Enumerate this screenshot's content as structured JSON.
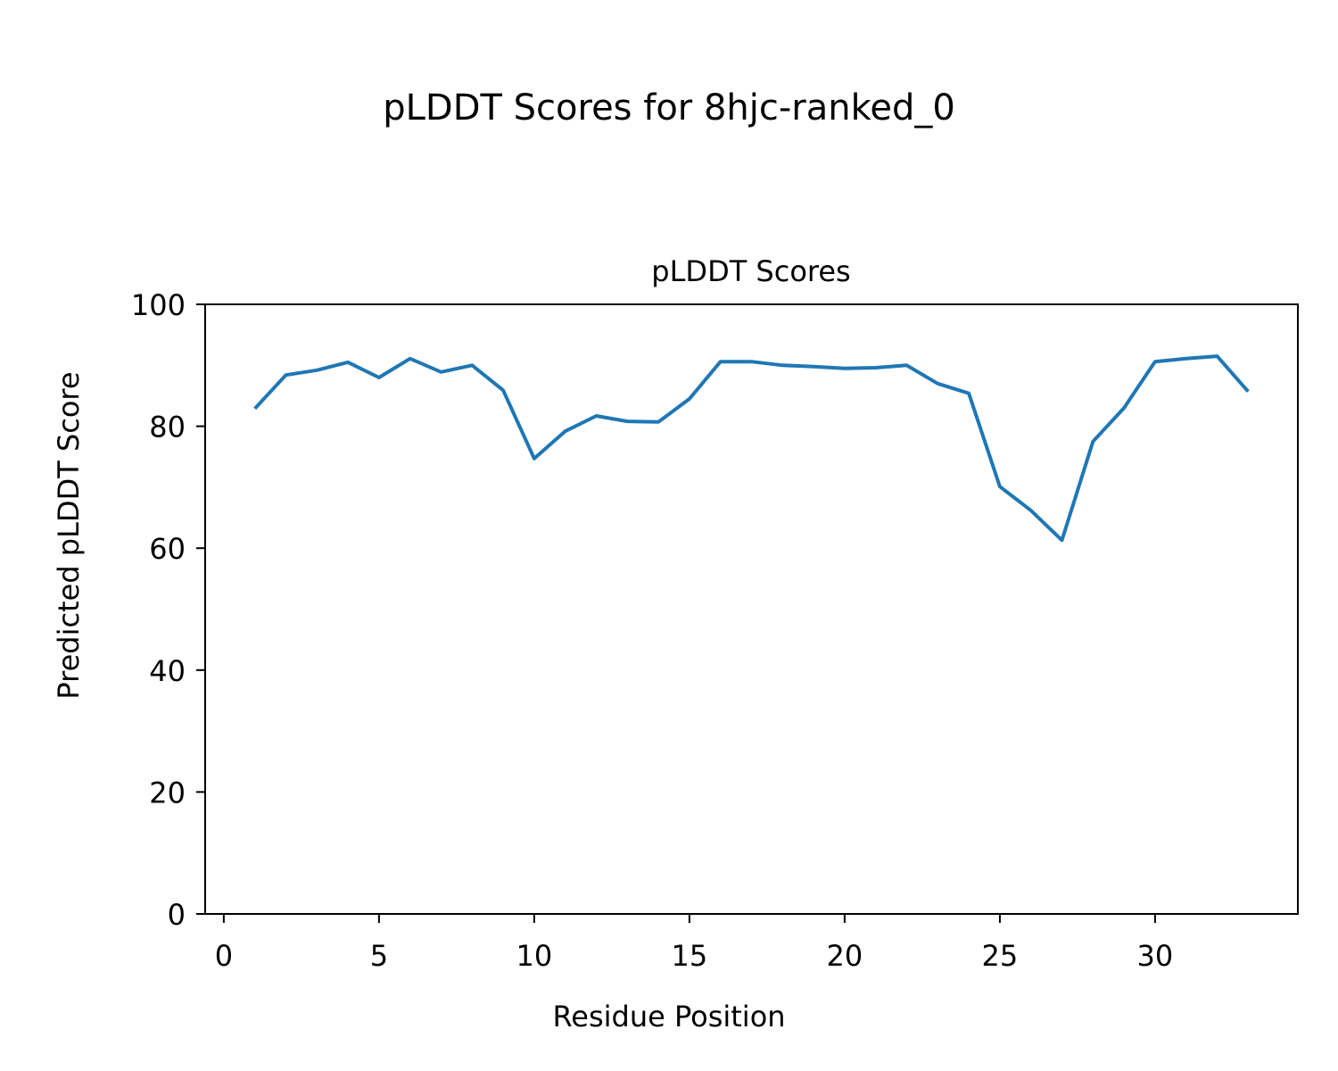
{
  "figure_title": "pLDDT Scores for 8hjc-ranked_0",
  "chart_data": {
    "type": "line",
    "title": "pLDDT Scores",
    "xlabel": "Residue Position",
    "ylabel": "Predicted pLDDT Score",
    "xlim": [
      -0.6,
      34.6
    ],
    "ylim": [
      0,
      100
    ],
    "xticks": [
      0,
      5,
      10,
      15,
      20,
      25,
      30
    ],
    "yticks": [
      0,
      20,
      40,
      60,
      80,
      100
    ],
    "grid": false,
    "color": "#1f77b4",
    "x": [
      1,
      2,
      3,
      4,
      5,
      6,
      7,
      8,
      9,
      10,
      11,
      12,
      13,
      14,
      15,
      16,
      17,
      18,
      19,
      20,
      21,
      22,
      23,
      24,
      25,
      26,
      27,
      28,
      29,
      30,
      31,
      32,
      33
    ],
    "y": [
      82.9,
      88.4,
      89.2,
      90.5,
      88.0,
      91.1,
      88.9,
      90.0,
      85.9,
      74.7,
      79.2,
      81.7,
      80.8,
      80.7,
      84.5,
      90.6,
      90.6,
      90.0,
      89.8,
      89.5,
      89.6,
      90.0,
      87.0,
      85.4,
      70.1,
      66.2,
      61.3,
      77.5,
      83.0,
      90.6,
      91.1,
      91.5,
      85.7
    ]
  }
}
